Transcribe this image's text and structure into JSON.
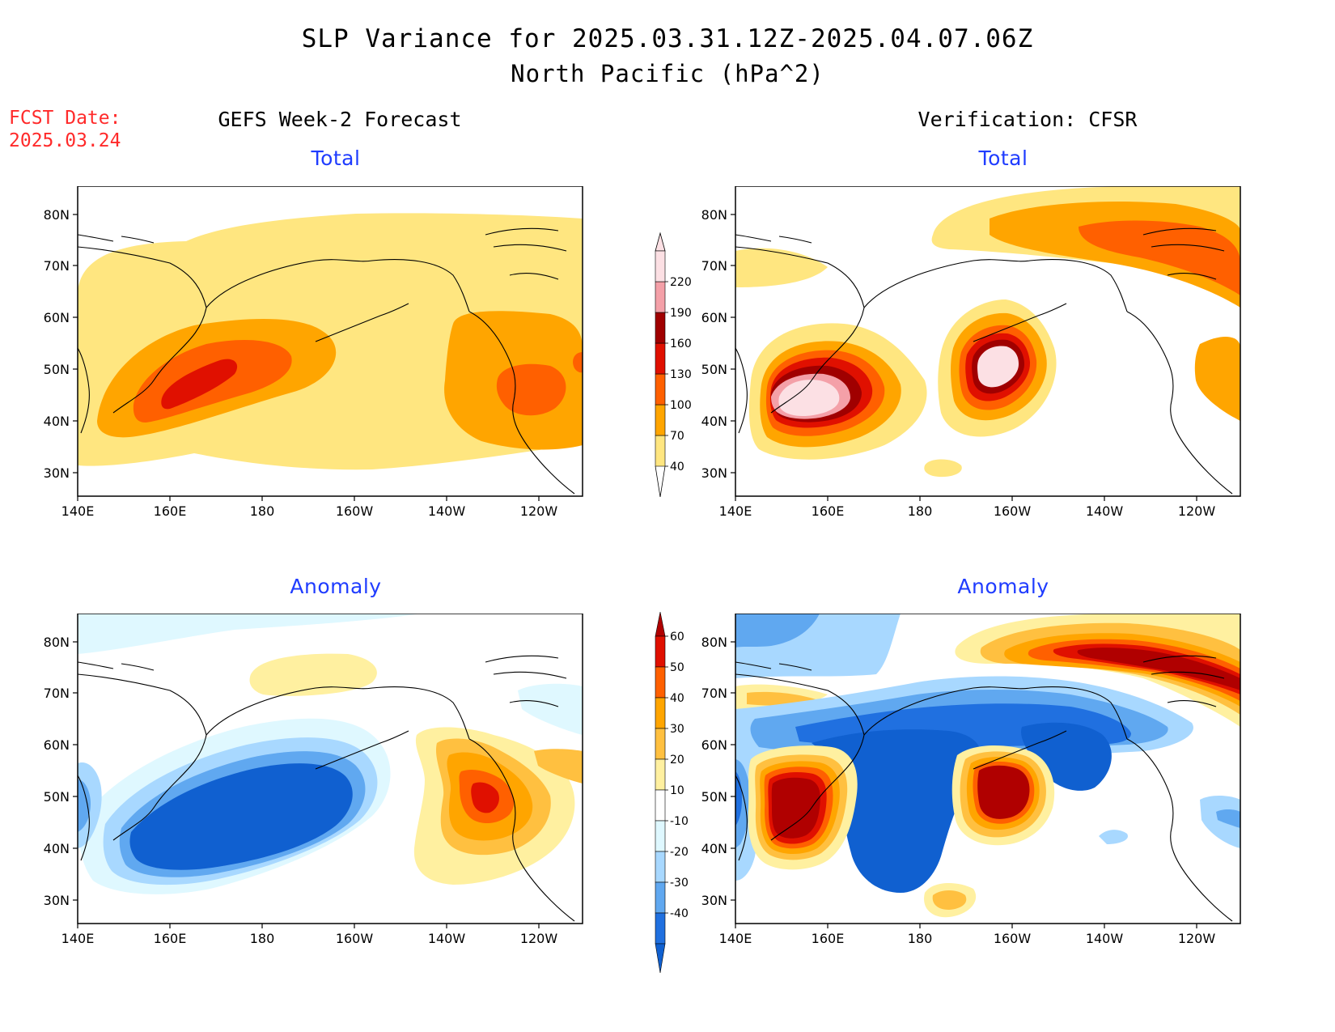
{
  "header": {
    "title_line1": "SLP Variance for 2025.03.31.12Z-2025.04.07.06Z",
    "title_line2": "North Pacific (hPa^2)",
    "fcst_label": "FCST Date:",
    "fcst_date": "2025.03.24"
  },
  "columns": {
    "left": "GEFS Week-2 Forecast",
    "right": "Verification: CFSR"
  },
  "panels": {
    "total_title": "Total",
    "anomaly_title": "Anomaly"
  },
  "map": {
    "lat_labels": [
      "80N",
      "70N",
      "60N",
      "50N",
      "40N",
      "30N"
    ],
    "lon_labels": [
      "140E",
      "160E",
      "180",
      "160W",
      "140W",
      "120W"
    ]
  },
  "colorbars": {
    "total": {
      "levels": [
        "40",
        "70",
        "100",
        "130",
        "160",
        "190",
        "220"
      ],
      "colors": [
        "#ffe680",
        "#ffa500",
        "#ff6000",
        "#e01000",
        "#a00000",
        "#f4a0a8",
        "#fce0e4"
      ]
    },
    "anomaly": {
      "levels": [
        "60",
        "50",
        "40",
        "30",
        "20",
        "10",
        "-10",
        "-20",
        "-30",
        "-40"
      ],
      "colors": [
        "#b00000",
        "#e01000",
        "#ff6000",
        "#ffa500",
        "#ffc040",
        "#fff0a0",
        "#ffffff",
        "#dff8ff",
        "#a8d8ff",
        "#60a8f0",
        "#2070e0",
        "#1060d0"
      ]
    }
  }
}
